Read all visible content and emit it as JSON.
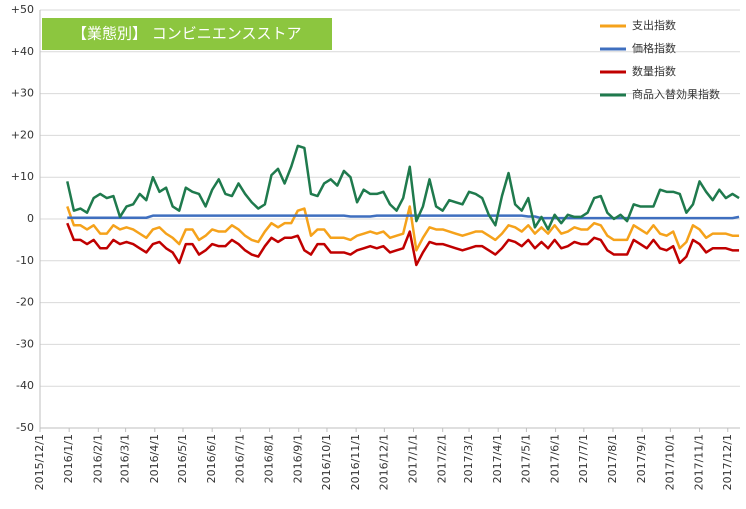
{
  "chart_data": {
    "type": "line",
    "title": "【業態別】 コンビニエンスストア",
    "title_color": "#8cc63f",
    "x": [
      "2015/12/30",
      "2016/1/6",
      "2016/1/13",
      "2016/1/20",
      "2016/1/27",
      "2016/2/3",
      "2016/2/10",
      "2016/2/17",
      "2016/2/24",
      "2016/3/2",
      "2016/3/9",
      "2016/3/16",
      "2016/3/23",
      "2016/3/30",
      "2016/4/6",
      "2016/4/13",
      "2016/4/20",
      "2016/4/27",
      "2016/5/4",
      "2016/5/11",
      "2016/5/18",
      "2016/5/25",
      "2016/6/1",
      "2016/6/8",
      "2016/6/15",
      "2016/6/22",
      "2016/6/29",
      "2016/7/6",
      "2016/7/13",
      "2016/7/20",
      "2016/7/27",
      "2016/8/3",
      "2016/8/10",
      "2016/8/17",
      "2016/8/24",
      "2016/8/31",
      "2016/9/7",
      "2016/9/14",
      "2016/9/21",
      "2016/9/28",
      "2016/10/5",
      "2016/10/12",
      "2016/10/19",
      "2016/10/26",
      "2016/11/2",
      "2016/11/9",
      "2016/11/16",
      "2016/11/23",
      "2016/11/30",
      "2016/12/7",
      "2016/12/14",
      "2016/12/21",
      "2016/12/28",
      "2017/1/4",
      "2017/1/11",
      "2017/1/18",
      "2017/1/25",
      "2017/2/1",
      "2017/2/8",
      "2017/2/15",
      "2017/2/22",
      "2017/3/1",
      "2017/3/8",
      "2017/3/15",
      "2017/3/22",
      "2017/3/29",
      "2017/4/5",
      "2017/4/12",
      "2017/4/19",
      "2017/4/26",
      "2017/5/3",
      "2017/5/10",
      "2017/5/17",
      "2017/5/24",
      "2017/5/31",
      "2017/6/7",
      "2017/6/14",
      "2017/6/21",
      "2017/6/28",
      "2017/7/5",
      "2017/7/12",
      "2017/7/19",
      "2017/7/26",
      "2017/8/2",
      "2017/8/9",
      "2017/8/16",
      "2017/8/23",
      "2017/8/30",
      "2017/9/6",
      "2017/9/13",
      "2017/9/20",
      "2017/9/27",
      "2017/10/4",
      "2017/10/11",
      "2017/10/18",
      "2017/10/25",
      "2017/11/1",
      "2017/11/8",
      "2017/11/15",
      "2017/11/22",
      "2017/11/29",
      "2017/12/6",
      "2017/12/13"
    ],
    "series": [
      {
        "name": "支出指数",
        "color": "#f5a21b",
        "values": [
          3,
          -1.5,
          -1.5,
          -2.5,
          -1.5,
          -3.5,
          -3.5,
          -1.5,
          -2.5,
          -2,
          -2.5,
          -3.5,
          -4.5,
          -2.5,
          -2,
          -3.5,
          -4.5,
          -6,
          -2.5,
          -2.5,
          -5,
          -4,
          -2.5,
          -3,
          -3,
          -1.5,
          -2.5,
          -4,
          -5,
          -5.5,
          -3,
          -1,
          -2,
          -1,
          -1,
          2,
          2.5,
          -4,
          -2.5,
          -2.5,
          -4.5,
          -4.5,
          -4.5,
          -5,
          -4,
          -3.5,
          -3,
          -3.5,
          -3,
          -4.5,
          -4,
          -3.5,
          3,
          -7.5,
          -4.5,
          -2,
          -2.5,
          -2.5,
          -3,
          -3.5,
          -4,
          -3.5,
          -3,
          -3,
          -4,
          -5,
          -3.5,
          -1.5,
          -2,
          -3,
          -1.5,
          -3.5,
          -2,
          -3.5,
          -1.5,
          -3.5,
          -3,
          -2,
          -2.5,
          -2.5,
          -1,
          -1.5,
          -4,
          -5,
          -5,
          -5,
          -1.5,
          -2.5,
          -3.5,
          -1.5,
          -3.5,
          -4,
          -3,
          -7,
          -5.5,
          -1.5,
          -2.5,
          -4.5,
          -3.5,
          -3.5,
          -3.5,
          -4,
          -4
        ]
      },
      {
        "name": "価格指数",
        "color": "#3f6fbf",
        "values": [
          0.3,
          0.3,
          0.3,
          0.3,
          0.3,
          0.3,
          0.3,
          0.3,
          0.3,
          0.3,
          0.3,
          0.3,
          0.3,
          0.8,
          0.8,
          0.8,
          0.8,
          0.8,
          0.8,
          0.8,
          0.8,
          0.8,
          0.8,
          0.8,
          0.8,
          0.8,
          0.8,
          0.8,
          0.8,
          0.8,
          0.8,
          0.8,
          0.8,
          0.8,
          0.8,
          0.8,
          0.8,
          0.8,
          0.8,
          0.8,
          0.8,
          0.8,
          0.8,
          0.6,
          0.6,
          0.6,
          0.6,
          0.8,
          0.8,
          0.8,
          0.8,
          0.8,
          0.8,
          0.8,
          0.8,
          0.8,
          0.8,
          0.8,
          0.8,
          0.8,
          0.8,
          0.8,
          0.8,
          0.8,
          0.8,
          0.8,
          0.8,
          0.8,
          0.8,
          0.8,
          0.6,
          0.6,
          0.2,
          0.2,
          0.2,
          0.2,
          0.2,
          0.2,
          0.2,
          0.2,
          0.2,
          0.2,
          0.2,
          0.2,
          0.2,
          0.2,
          0.2,
          0.2,
          0.2,
          0.2,
          0.2,
          0.2,
          0.2,
          0.2,
          0.2,
          0.2,
          0.2,
          0.2,
          0.2,
          0.2,
          0.2,
          0.2,
          0.5
        ]
      },
      {
        "name": "数量指数",
        "color": "#c00000",
        "values": [
          -1,
          -5,
          -5,
          -6,
          -5,
          -7,
          -7,
          -5,
          -6,
          -5.5,
          -6,
          -7,
          -8,
          -6,
          -5.5,
          -7,
          -8,
          -10.5,
          -6,
          -6,
          -8.5,
          -7.5,
          -6,
          -6.5,
          -6.5,
          -5,
          -6,
          -7.5,
          -8.5,
          -9,
          -6.5,
          -4.5,
          -5.5,
          -4.5,
          -4.5,
          -4,
          -7.5,
          -8.5,
          -6,
          -6,
          -8,
          -8,
          -8,
          -8.5,
          -7.5,
          -7,
          -6.5,
          -7,
          -6.5,
          -8,
          -7.5,
          -7,
          -3,
          -11,
          -8,
          -5.5,
          -6,
          -6,
          -6.5,
          -7,
          -7.5,
          -7,
          -6.5,
          -6.5,
          -7.5,
          -8.5,
          -7,
          -5,
          -5.5,
          -6.5,
          -5,
          -7,
          -5.5,
          -7,
          -5,
          -7,
          -6.5,
          -5.5,
          -6,
          -6,
          -4.5,
          -5,
          -7.5,
          -8.5,
          -8.5,
          -8.5,
          -5,
          -6,
          -7,
          -5,
          -7,
          -7.5,
          -6.5,
          -10.5,
          -9,
          -5,
          -6,
          -8,
          -7,
          -7,
          -7,
          -7.5,
          -7.5
        ]
      },
      {
        "name": "商品入替効果指数",
        "color": "#1f7a4d",
        "values": [
          9,
          2,
          2.5,
          1.5,
          5,
          6,
          5,
          5.5,
          0.5,
          3,
          3.5,
          6,
          4.5,
          10,
          6.5,
          7.5,
          3,
          2,
          7.5,
          6.5,
          6,
          3,
          7,
          9.5,
          6,
          5.5,
          8.5,
          6,
          4,
          2.5,
          3.5,
          10.5,
          12,
          8.5,
          12.5,
          17.5,
          17,
          6,
          5.5,
          8.5,
          9.5,
          8,
          11.5,
          10,
          4,
          7,
          6,
          6,
          6.5,
          3.5,
          2,
          5,
          12.5,
          -0.5,
          3,
          9.5,
          3,
          2,
          4.5,
          4,
          3.5,
          6.5,
          6,
          5,
          1,
          -1.5,
          5.5,
          11,
          3.5,
          2,
          5,
          -2,
          0.5,
          -2.5,
          1,
          -1,
          1,
          0.5,
          0.5,
          1.5,
          5,
          5.5,
          1.5,
          0,
          1,
          -0.5,
          3.5,
          3,
          3,
          3,
          7,
          6.5,
          6.5,
          6,
          1.5,
          3.5,
          9,
          6.5,
          4.5,
          7,
          5,
          6,
          5
        ]
      }
    ],
    "xlim": [
      "2015/12/1",
      "2017/12/14"
    ],
    "xticks": [
      "2015/12/1",
      "2016/1/1",
      "2016/2/1",
      "2016/3/1",
      "2016/4/1",
      "2016/5/1",
      "2016/6/1",
      "2016/7/1",
      "2016/8/1",
      "2016/9/1",
      "2016/10/1",
      "2016/11/1",
      "2016/12/1",
      "2017/1/1",
      "2017/2/1",
      "2017/3/1",
      "2017/4/1",
      "2017/5/1",
      "2017/6/1",
      "2017/7/1",
      "2017/8/1",
      "2017/9/1",
      "2017/10/1",
      "2017/11/1",
      "2017/12/1"
    ],
    "ylim": [
      -50,
      50
    ],
    "yticks": [
      -50,
      -40,
      -30,
      -20,
      -10,
      0,
      {
        "value": 10,
        "label": "+10"
      },
      {
        "value": 20,
        "label": "+20"
      },
      {
        "value": 30,
        "label": "+30"
      },
      {
        "value": 40,
        "label": "+40"
      },
      {
        "value": 50,
        "label": "+50"
      }
    ],
    "grid": true,
    "legend": "upper right"
  }
}
